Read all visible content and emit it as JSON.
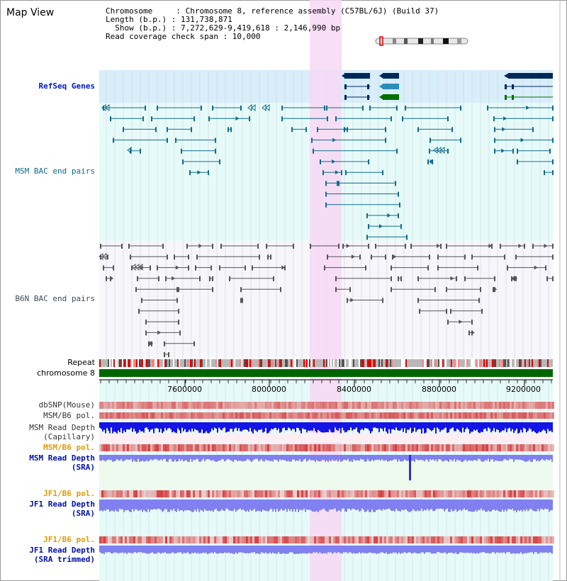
{
  "title": "Map View",
  "info": {
    "chromosome": "Chromosome     : Chromosome 8, reference assembly (C57BL/6J) (Build 37)",
    "length": "Length (b.p.) : 131,738,871",
    "show": "  Show (b.p.) : 7,272,629-9,419,618 : 2,146,990 bp",
    "span": "Read coverage check span : 10,000"
  },
  "tracks": {
    "refseq": "RefSeq Genes",
    "msm_bac": "MSM BAC end pairs",
    "b6n_bac": "B6N BAC end pairs",
    "repeat": "Repeat",
    "chromosome": "chromosome 8",
    "dbsnp": "dbSNP(Mouse)",
    "msm_b6_pol_1": "MSM/B6 pol.",
    "msm_read_depth_cap_1": "MSM Read Depth",
    "msm_read_depth_cap_2": "(Capillary)",
    "msm_b6_pol_2": "MSM/B6 pol.",
    "msm_read_depth_sra_1": "MSM Read Depth",
    "msm_read_depth_sra_2": "(SRA)",
    "jf1_b6_pol_1": "JF1/B6 pol.",
    "jf1_read_depth_sra_1": "JF1 Read Depth",
    "jf1_read_depth_sra_2": "(SRA)",
    "jf1_b6_pol_2": "JF1/B6 pol.",
    "jf1_read_depth_trim_1": "JF1 Read Depth",
    "jf1_read_depth_trim_2": "(SRA trimmed)"
  },
  "axis": {
    "ticks": [
      "7600000",
      "8000000",
      "8400000",
      "8800000",
      "9200000"
    ]
  },
  "colors": {
    "highlight": "#f7d8f4",
    "refseq_bg": "#d8eefa",
    "bac_bg": "#e6fbf9",
    "b6n_bg": "#f6f6fb",
    "chrom_green": "#006600",
    "gene_navy": "#00285a",
    "gene_teal": "#2a8fb8",
    "gene_green": "#007000",
    "teal_line": "#0f6c8c",
    "gray_line": "#555555",
    "depth_blue": "#1414e6",
    "depth_lavender": "#8080f0",
    "pol_red": "#e03030"
  }
}
